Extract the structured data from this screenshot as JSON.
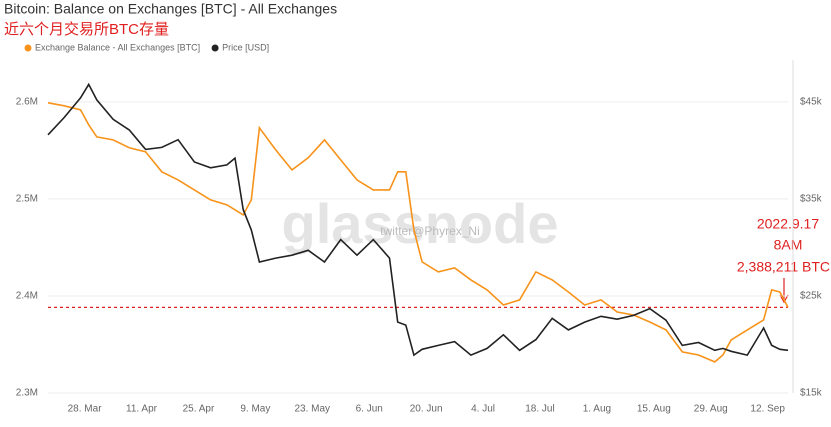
{
  "chart_data": {
    "type": "line",
    "title": "Bitcoin: Balance on Exchanges [BTC] - All Exchanges",
    "subtitle": "近六个月交易所BTC存量",
    "watermark": "glassnode",
    "credit": "twitter@Phyrex_Ni",
    "annotations": [
      "2022.9.17",
      "8AM",
      "2,388,211 BTC"
    ],
    "reference_line": 2388211,
    "x": [
      0,
      4,
      8,
      10,
      12,
      16,
      20,
      24,
      28,
      32,
      36,
      40,
      44,
      46,
      48,
      50,
      52,
      56,
      60,
      64,
      68,
      72,
      76,
      80,
      84,
      86,
      88,
      90,
      92,
      96,
      100,
      104,
      108,
      112,
      116,
      120,
      124,
      128,
      132,
      136,
      140,
      144,
      148,
      152,
      156,
      160,
      164,
      166,
      168,
      172,
      176,
      178,
      180,
      182
    ],
    "xlim": [
      0,
      182
    ],
    "xticks": [
      {
        "value": 9,
        "label": "28. Mar"
      },
      {
        "value": 23,
        "label": "11. Apr"
      },
      {
        "value": 37,
        "label": "25. Apr"
      },
      {
        "value": 51,
        "label": "9. May"
      },
      {
        "value": 65,
        "label": "23. May"
      },
      {
        "value": 79,
        "label": "6. Jun"
      },
      {
        "value": 93,
        "label": "20. Jun"
      },
      {
        "value": 107,
        "label": "4. Jul"
      },
      {
        "value": 121,
        "label": "18. Jul"
      },
      {
        "value": 135,
        "label": "1. Aug"
      },
      {
        "value": 149,
        "label": "15. Aug"
      },
      {
        "value": 163,
        "label": "29. Aug"
      },
      {
        "value": 177,
        "label": "12. Sep"
      }
    ],
    "ylim": [
      2300000,
      2640000
    ],
    "yticks": [
      {
        "value": 2300000,
        "label": "2.3M"
      },
      {
        "value": 2400000,
        "label": "2.4M"
      },
      {
        "value": 2500000,
        "label": "2.5M"
      },
      {
        "value": 2600000,
        "label": "2.6M"
      }
    ],
    "y2lim": [
      15000,
      49000
    ],
    "y2ticks": [
      {
        "value": 15000,
        "label": "$15k"
      },
      {
        "value": 25000,
        "label": "$25k"
      },
      {
        "value": 35000,
        "label": "$35k"
      },
      {
        "value": 45000,
        "label": "$45k"
      }
    ],
    "grid": true,
    "series": [
      {
        "name": "Exchange Balance - All Exchanges [BTC]",
        "color": "#f7931a",
        "values": [
          2599000,
          2595900,
          2591800,
          2576300,
          2563900,
          2560800,
          2552600,
          2548500,
          2527900,
          2519600,
          2509300,
          2499000,
          2493900,
          2488700,
          2483500,
          2499000,
          2573200,
          2550500,
          2529900,
          2542300,
          2560800,
          2540200,
          2519600,
          2509300,
          2509300,
          2527900,
          2527900,
          2468100,
          2435100,
          2424800,
          2428900,
          2416500,
          2406200,
          2390700,
          2395900,
          2424800,
          2416500,
          2404100,
          2390700,
          2395900,
          2383500,
          2380400,
          2373200,
          2365000,
          2342300,
          2339200,
          2332000,
          2339200,
          2354600,
          2365000,
          2375300,
          2406200,
          2404100,
          2388211
        ]
      },
      {
        "name": "Price [USD]",
        "color": "#222222",
        "axis": "y2",
        "values": [
          41600,
          43400,
          45400,
          46800,
          45200,
          43200,
          42100,
          40100,
          40300,
          41100,
          38800,
          38200,
          38500,
          39200,
          33900,
          31800,
          28500,
          28900,
          29200,
          29700,
          28500,
          30800,
          29200,
          30800,
          28900,
          22300,
          22000,
          18900,
          19500,
          19900,
          20300,
          18900,
          19600,
          21000,
          19400,
          20500,
          22700,
          21500,
          22300,
          22900,
          22600,
          23000,
          23700,
          22500,
          19900,
          20200,
          19400,
          19600,
          19300,
          18900,
          21700,
          19900,
          19500,
          19400
        ]
      }
    ]
  }
}
